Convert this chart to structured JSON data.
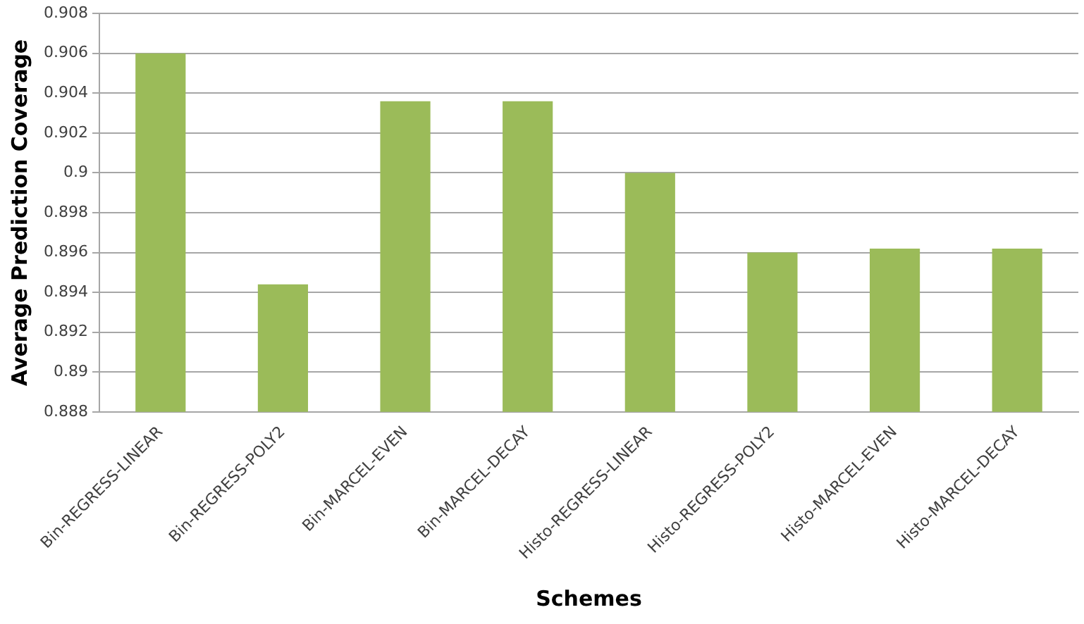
{
  "chart_data": {
    "type": "bar",
    "xlabel": "Schemes",
    "ylabel": "Average Prediction Coverage",
    "categories": [
      "Bin-REGRESS-LINEAR",
      "Bin-REGRESS-POLY2",
      "Bin-MARCEL-EVEN",
      "Bin-MARCEL-DECAY",
      "Histo-REGRESS-LINEAR",
      "Histo-REGRESS-POLY2",
      "Histo-MARCEL-EVEN",
      "Histo-MARCEL-DECAY"
    ],
    "values": [
      0.906,
      0.8944,
      0.9036,
      0.9036,
      0.9,
      0.896,
      0.8962,
      0.8962
    ],
    "color": "#9bbb59",
    "ylim": [
      0.888,
      0.908
    ],
    "yticks": [
      0.888,
      0.89,
      0.892,
      0.894,
      0.896,
      0.898,
      0.9,
      0.902,
      0.904,
      0.906,
      0.908
    ],
    "grid": "y",
    "legend": false
  }
}
